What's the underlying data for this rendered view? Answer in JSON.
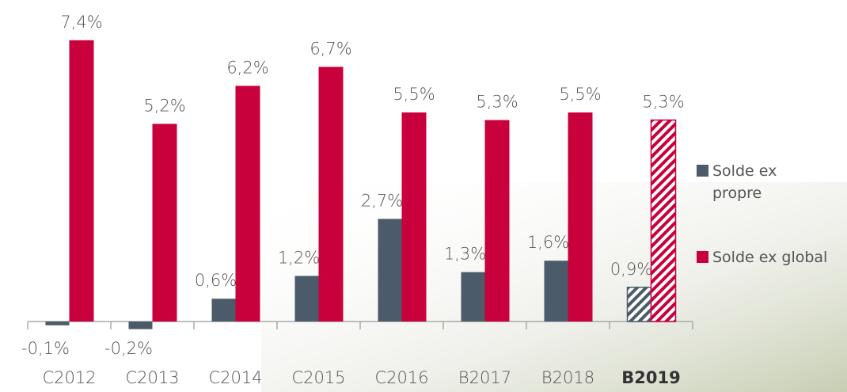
{
  "chart_data": {
    "type": "bar",
    "categories": [
      "C2012",
      "C2013",
      "C2014",
      "C2015",
      "C2016",
      "B2017",
      "B2018",
      "B2019"
    ],
    "hatched": [
      false,
      false,
      false,
      false,
      false,
      false,
      false,
      true
    ],
    "series": [
      {
        "name": "Solde ex propre",
        "color": "#4b5b69",
        "values": [
          -0.1,
          -0.2,
          0.6,
          1.2,
          2.7,
          1.3,
          1.6,
          0.9
        ],
        "value_labels": [
          "-0,1%",
          "-0,2%",
          "0,6%",
          "1,2%",
          "2,7%",
          "1,3%",
          "1,6%",
          "0,9%"
        ]
      },
      {
        "name": "Solde ex global",
        "color": "#c8003c",
        "values": [
          7.4,
          5.2,
          6.2,
          6.7,
          5.5,
          5.3,
          5.5,
          5.3
        ],
        "value_labels": [
          "7,4%",
          "5,2%",
          "6,2%",
          "6,7%",
          "5,5%",
          "5,3%",
          "5,5%",
          "5,3%"
        ]
      }
    ]
  }
}
